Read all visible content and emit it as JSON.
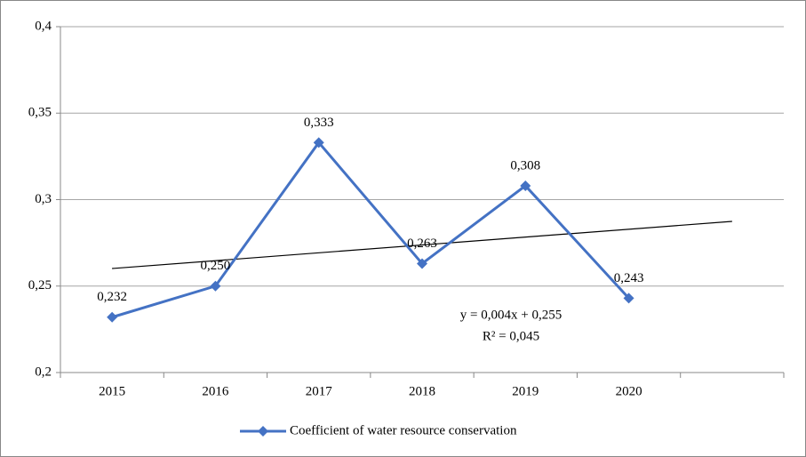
{
  "chart_data": {
    "type": "line",
    "categories": [
      "2015",
      "2016",
      "2017",
      "2018",
      "2019",
      "2020",
      null
    ],
    "series": [
      {
        "name": "Coefficient of water resource conservation",
        "color": "#4472c4",
        "values": [
          0.232,
          0.25,
          0.333,
          0.263,
          0.308,
          0.243,
          null
        ],
        "value_labels": [
          "0,232",
          "0,250",
          "0,333",
          "0,263",
          "0,308",
          "0,243",
          null
        ]
      }
    ],
    "ylim": [
      0.2,
      0.4
    ],
    "yticks": [
      {
        "value": 0.2,
        "label": "0,2"
      },
      {
        "value": 0.25,
        "label": "0,25"
      },
      {
        "value": 0.3,
        "label": "0,3"
      },
      {
        "value": 0.35,
        "label": "0,35"
      },
      {
        "value": 0.4,
        "label": "0,4"
      }
    ],
    "grid": true,
    "trendline": {
      "type": "linear",
      "color": "#000000",
      "annotation": [
        "y = 0,004x + 0,255",
        "R² = 0,045"
      ]
    },
    "legend": "bottom"
  }
}
